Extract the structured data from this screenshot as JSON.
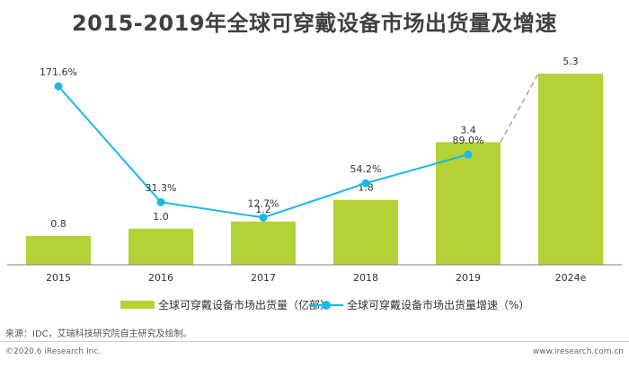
{
  "title": "2015-2019年全球可穿戴设备市场出货量及增速",
  "legend": {
    "bar_label": "全球可穿戴设备市场出货量（亿部）",
    "line_label": "全球可穿戴设备市场出货量增速（%）"
  },
  "source": "来源：IDC，艾瑞科技研究院自主研究及绘制。",
  "footer": {
    "copyright": "©2020.6 iResearch Inc.",
    "website": "www.iresearch.com.cn"
  },
  "colors": {
    "bar": "#b3d235",
    "line": "#1ab8e8",
    "dashed": "#a6a6a6",
    "axis": "#7f7f7f"
  },
  "chart_data": {
    "type": "bar",
    "categories": [
      "2015",
      "2016",
      "2017",
      "2018",
      "2019",
      "2024e"
    ],
    "series": [
      {
        "name": "全球可穿戴设备市场出货量（亿部）",
        "type": "bar",
        "values": [
          0.8,
          1.0,
          1.2,
          1.8,
          3.4,
          5.3
        ],
        "labels": [
          "0.8",
          "1.0",
          "1.2",
          "1.8",
          "3.4",
          "5.3"
        ]
      },
      {
        "name": "全球可穿戴设备市场出货量增速（%）",
        "type": "line",
        "values": [
          171.6,
          31.3,
          12.7,
          54.2,
          89.0,
          null
        ],
        "labels": [
          "171.6%",
          "31.3%",
          "12.7%",
          "54.2%",
          "89.0%",
          ""
        ]
      }
    ],
    "forecast_connector": {
      "from": "2019",
      "to": "2024e",
      "style": "dashed"
    },
    "bar_ylim": [
      0,
      5.8
    ],
    "line_ylim": [
      -50,
      200
    ],
    "grid": false,
    "legend_position": "bottom"
  }
}
